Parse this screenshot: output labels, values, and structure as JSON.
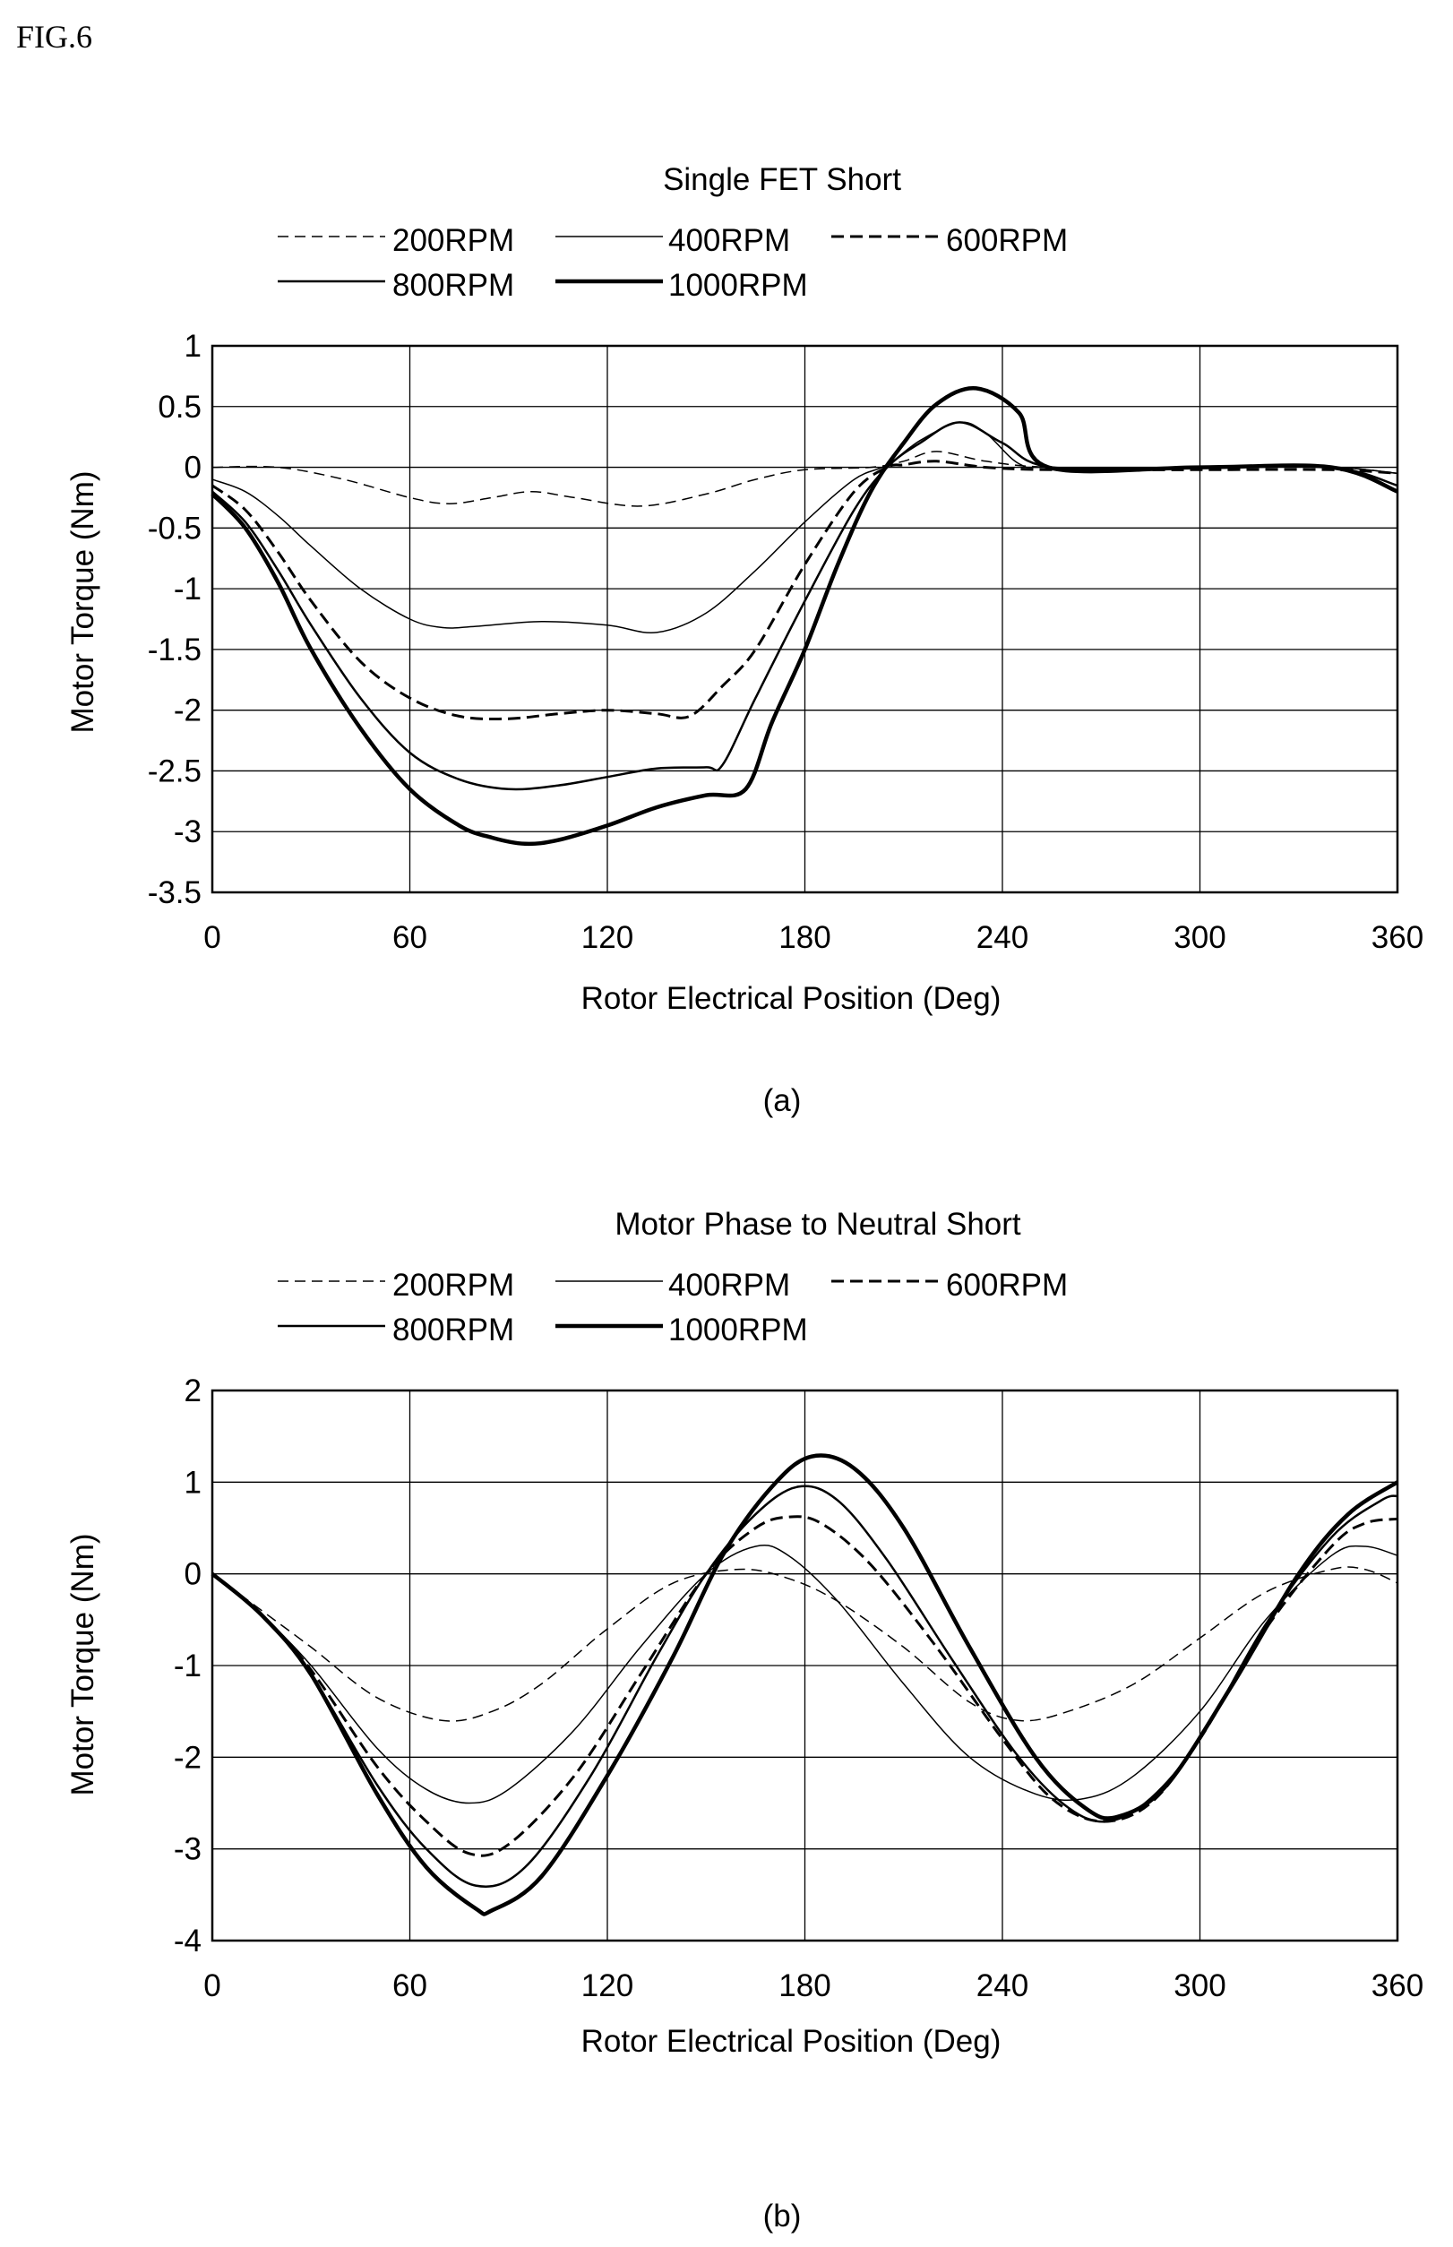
{
  "figure_label": "FIG.6",
  "chart_data": [
    {
      "type": "line",
      "title": "Single FET Short",
      "caption": "(a)",
      "xlabel": "Rotor Electrical Position (Deg)",
      "ylabel": "Motor Torque (Nm)",
      "xlim": [
        0,
        360
      ],
      "ylim": [
        -3.5,
        1
      ],
      "xticks": [
        0,
        60,
        120,
        180,
        240,
        300,
        360
      ],
      "yticks": [
        1,
        0.5,
        0,
        -0.5,
        -1,
        -1.5,
        -2,
        -2.5,
        -3,
        -3.5
      ],
      "grid": true,
      "legend_position": "top",
      "series": [
        {
          "name": "200RPM",
          "style": "dashed-thin",
          "x": [
            0,
            20,
            40,
            60,
            72,
            85,
            97,
            110,
            130,
            150,
            165,
            180,
            200,
            210,
            220,
            235,
            255,
            300,
            340,
            360
          ],
          "y": [
            0,
            0,
            -0.1,
            -0.25,
            -0.3,
            -0.25,
            -0.2,
            -0.25,
            -0.32,
            -0.22,
            -0.1,
            -0.02,
            0,
            0.05,
            0.13,
            0.05,
            0,
            0,
            0,
            -0.05
          ]
        },
        {
          "name": "400RPM",
          "style": "solid-thin",
          "x": [
            0,
            10,
            20,
            30,
            45,
            60,
            70,
            80,
            100,
            120,
            135,
            150,
            165,
            180,
            195,
            205,
            215,
            227,
            235,
            245,
            255,
            300,
            340,
            360
          ],
          "y": [
            -0.1,
            -0.2,
            -0.4,
            -0.65,
            -1.0,
            -1.25,
            -1.32,
            -1.31,
            -1.27,
            -1.3,
            -1.36,
            -1.2,
            -0.85,
            -0.45,
            -0.1,
            0.02,
            0.22,
            0.37,
            0.28,
            0.03,
            0,
            0,
            0,
            -0.05
          ]
        },
        {
          "name": "600RPM",
          "style": "dashed-thick",
          "x": [
            0,
            10,
            20,
            30,
            45,
            60,
            75,
            90,
            105,
            120,
            135,
            145,
            155,
            165,
            180,
            195,
            205,
            210,
            220,
            235,
            255,
            300,
            340,
            360
          ],
          "y": [
            -0.15,
            -0.35,
            -0.7,
            -1.1,
            -1.6,
            -1.9,
            -2.05,
            -2.07,
            -2.03,
            -2.0,
            -2.03,
            -2.05,
            -1.8,
            -1.5,
            -0.8,
            -0.2,
            0,
            0.02,
            0.05,
            0,
            -0.02,
            -0.02,
            -0.02,
            -0.05
          ]
        },
        {
          "name": "800RPM",
          "style": "solid-medium",
          "x": [
            0,
            10,
            20,
            30,
            45,
            60,
            75,
            90,
            105,
            120,
            135,
            150,
            155,
            165,
            180,
            195,
            205,
            215,
            227,
            240,
            255,
            300,
            340,
            360
          ],
          "y": [
            -0.2,
            -0.45,
            -0.85,
            -1.3,
            -1.9,
            -2.35,
            -2.57,
            -2.65,
            -2.62,
            -2.55,
            -2.48,
            -2.47,
            -2.45,
            -1.9,
            -1.1,
            -0.35,
            0,
            0.2,
            0.37,
            0.2,
            0,
            0,
            0,
            -0.15
          ]
        },
        {
          "name": "1000RPM",
          "style": "solid-thick",
          "x": [
            0,
            10,
            20,
            30,
            45,
            60,
            75,
            85,
            95,
            105,
            120,
            135,
            150,
            162,
            170,
            180,
            190,
            200,
            210,
            220,
            232,
            245,
            254,
            300,
            340,
            360
          ],
          "y": [
            -0.22,
            -0.5,
            -0.95,
            -1.5,
            -2.15,
            -2.65,
            -2.95,
            -3.05,
            -3.1,
            -3.07,
            -2.95,
            -2.8,
            -2.7,
            -2.65,
            -2.1,
            -1.5,
            -0.8,
            -0.2,
            0.2,
            0.52,
            0.65,
            0.45,
            0,
            0,
            0,
            -0.2
          ]
        }
      ]
    },
    {
      "type": "line",
      "title": "Motor Phase to Neutral Short",
      "caption": "(b)",
      "xlabel": "Rotor Electrical Position (Deg)",
      "ylabel": "Motor Torque (Nm)",
      "xlim": [
        0,
        360
      ],
      "ylim": [
        -4,
        2
      ],
      "xticks": [
        0,
        60,
        120,
        180,
        240,
        300,
        360
      ],
      "yticks": [
        2,
        1,
        0,
        -1,
        -2,
        -3,
        -4
      ],
      "grid": true,
      "legend_position": "top",
      "series": [
        {
          "name": "200RPM",
          "style": "dashed-thin",
          "x": [
            0,
            15,
            30,
            50,
            70,
            85,
            100,
            120,
            140,
            160,
            175,
            190,
            210,
            230,
            245,
            260,
            280,
            300,
            320,
            340,
            350,
            360
          ],
          "y": [
            0,
            -0.4,
            -0.8,
            -1.35,
            -1.6,
            -1.5,
            -1.2,
            -0.6,
            -0.1,
            0.05,
            -0.05,
            -0.3,
            -0.8,
            -1.4,
            -1.6,
            -1.5,
            -1.2,
            -0.7,
            -0.2,
            0.05,
            0.05,
            -0.1
          ]
        },
        {
          "name": "400RPM",
          "style": "solid-thin",
          "x": [
            0,
            15,
            30,
            50,
            65,
            78,
            90,
            110,
            130,
            150,
            165,
            175,
            190,
            210,
            230,
            250,
            265,
            280,
            300,
            320,
            340,
            350,
            360
          ],
          "y": [
            0,
            -0.45,
            -1.0,
            -1.9,
            -2.35,
            -2.5,
            -2.35,
            -1.7,
            -0.8,
            0,
            0.3,
            0.2,
            -0.3,
            -1.2,
            -2.0,
            -2.4,
            -2.45,
            -2.2,
            -1.5,
            -0.5,
            0.2,
            0.3,
            0.2
          ]
        },
        {
          "name": "600RPM",
          "style": "dashed-thick",
          "x": [
            0,
            15,
            30,
            50,
            65,
            78,
            90,
            110,
            130,
            150,
            165,
            175,
            185,
            200,
            220,
            240,
            255,
            270,
            285,
            300,
            320,
            340,
            350,
            360
          ],
          "y": [
            0,
            -0.45,
            -1.05,
            -2.1,
            -2.7,
            -3.05,
            -2.95,
            -2.2,
            -1.1,
            0,
            0.5,
            0.62,
            0.55,
            0.1,
            -0.8,
            -1.8,
            -2.45,
            -2.7,
            -2.5,
            -1.8,
            -0.6,
            0.3,
            0.55,
            0.6
          ]
        },
        {
          "name": "800RPM",
          "style": "solid-medium",
          "x": [
            0,
            15,
            30,
            50,
            65,
            80,
            95,
            115,
            135,
            150,
            165,
            178,
            190,
            205,
            225,
            245,
            260,
            272,
            285,
            300,
            320,
            340,
            355,
            360
          ],
          "y": [
            0,
            -0.45,
            -1.1,
            -2.3,
            -3.0,
            -3.4,
            -3.2,
            -2.2,
            -0.9,
            0,
            0.65,
            0.95,
            0.8,
            0.15,
            -0.95,
            -2.0,
            -2.55,
            -2.7,
            -2.45,
            -1.8,
            -0.55,
            0.4,
            0.8,
            0.85
          ]
        },
        {
          "name": "1000RPM",
          "style": "solid-thick",
          "x": [
            0,
            15,
            30,
            50,
            65,
            80,
            85,
            100,
            120,
            140,
            155,
            170,
            182,
            195,
            210,
            230,
            250,
            265,
            275,
            290,
            310,
            330,
            345,
            360
          ],
          "y": [
            0,
            -0.45,
            -1.1,
            -2.4,
            -3.2,
            -3.65,
            -3.67,
            -3.3,
            -2.2,
            -0.9,
            0.2,
            0.95,
            1.28,
            1.15,
            0.5,
            -0.8,
            -2.0,
            -2.55,
            -2.65,
            -2.3,
            -1.2,
            0,
            0.65,
            1.0
          ]
        }
      ]
    }
  ]
}
